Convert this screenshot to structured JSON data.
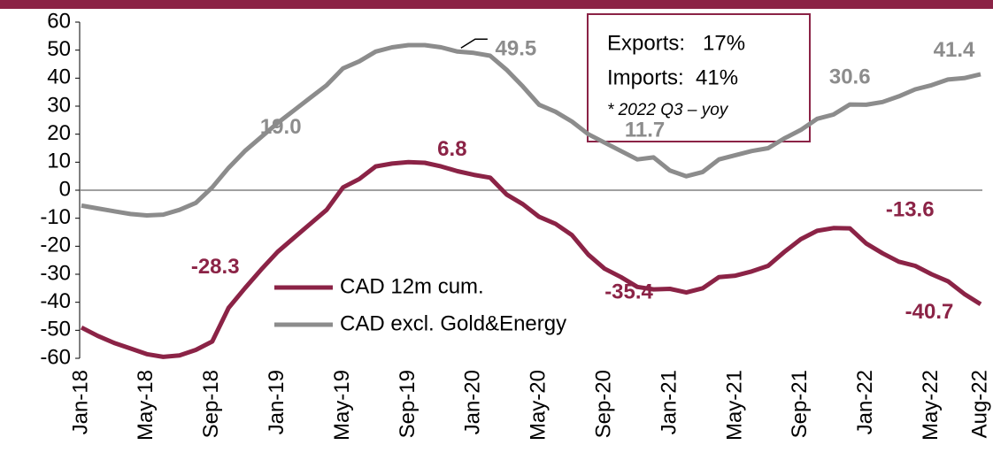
{
  "chart_data": {
    "type": "line",
    "categories": [
      "Jan-18",
      null,
      null,
      null,
      "May-18",
      null,
      null,
      null,
      "Sep-18",
      null,
      null,
      null,
      "Jan-19",
      null,
      null,
      null,
      "May-19",
      null,
      null,
      null,
      "Sep-19",
      null,
      null,
      null,
      "Jan-20",
      null,
      null,
      null,
      "May-20",
      null,
      null,
      null,
      "Sep-20",
      null,
      null,
      null,
      "Jan-21",
      null,
      null,
      null,
      "May-21",
      null,
      null,
      null,
      "Sep-21",
      null,
      null,
      null,
      "Jan-22",
      null,
      null,
      null,
      "May-22",
      null,
      null,
      "Aug-22"
    ],
    "series": [
      {
        "name": "CAD 12m cum.",
        "color": "#8b2346",
        "values": [
          -49,
          -52,
          -54.5,
          -56.5,
          -58.5,
          -59.5,
          -59,
          -57,
          -54,
          -42,
          -35,
          -28.3,
          -22,
          -17,
          -12,
          -7,
          1,
          4,
          8.5,
          9.5,
          10,
          9.8,
          8.5,
          6.8,
          5.5,
          4.5,
          -1.5,
          -5,
          -9.5,
          -12,
          -16,
          -23,
          -28,
          -31,
          -34.5,
          -35.4,
          -35.2,
          -36.5,
          -35,
          -31,
          -30.5,
          -29,
          -27,
          -22,
          -17.5,
          -14.5,
          -13.5,
          -13.6,
          -19,
          -22.5,
          -25.5,
          -27,
          -30,
          -32.5,
          -37,
          -40.7
        ],
        "value_labels": [
          null,
          null,
          null,
          null,
          null,
          null,
          null,
          null,
          null,
          null,
          null,
          "-28.3",
          null,
          null,
          null,
          null,
          null,
          null,
          null,
          null,
          null,
          null,
          null,
          "6.8",
          null,
          null,
          null,
          null,
          null,
          null,
          null,
          null,
          null,
          null,
          null,
          "-35.4",
          null,
          null,
          null,
          null,
          null,
          null,
          null,
          null,
          null,
          null,
          null,
          "-13.6",
          null,
          null,
          null,
          null,
          null,
          null,
          null,
          "-40.7"
        ]
      },
      {
        "name": "CAD excl. Gold&Energy",
        "color": "#8c8c8c",
        "values": [
          -5.5,
          -6.5,
          -7.5,
          -8.5,
          -9,
          -8.7,
          -7,
          -4.5,
          1,
          8,
          14,
          19,
          24,
          28.5,
          33,
          37.5,
          43.5,
          46,
          49.5,
          51,
          51.8,
          51.8,
          51,
          49.5,
          49,
          48,
          43,
          37,
          30.5,
          28,
          24.5,
          20,
          17,
          14,
          11,
          11.7,
          7,
          5,
          6.5,
          11,
          12.5,
          14,
          15,
          18.5,
          21.5,
          25.5,
          27,
          30.6,
          30.5,
          31.5,
          33.5,
          36,
          37.5,
          39.5,
          40,
          41.4
        ],
        "value_labels": [
          null,
          null,
          null,
          null,
          null,
          null,
          null,
          null,
          null,
          null,
          null,
          "19.0",
          null,
          null,
          null,
          null,
          null,
          null,
          null,
          null,
          null,
          null,
          null,
          "49.5",
          null,
          null,
          null,
          null,
          null,
          null,
          null,
          null,
          null,
          null,
          null,
          "11.7",
          null,
          null,
          null,
          null,
          null,
          null,
          null,
          null,
          null,
          null,
          null,
          "30.6",
          null,
          null,
          null,
          null,
          null,
          null,
          null,
          "41.4"
        ]
      }
    ],
    "ylim": [
      -60,
      60
    ],
    "yticks": [
      -60,
      -50,
      -40,
      -30,
      -20,
      -10,
      0,
      10,
      20,
      30,
      40,
      50,
      60
    ],
    "notes": [
      "Exports:   17%",
      "Imports:  41%",
      "* 2022 Q3 – yoy"
    ]
  }
}
